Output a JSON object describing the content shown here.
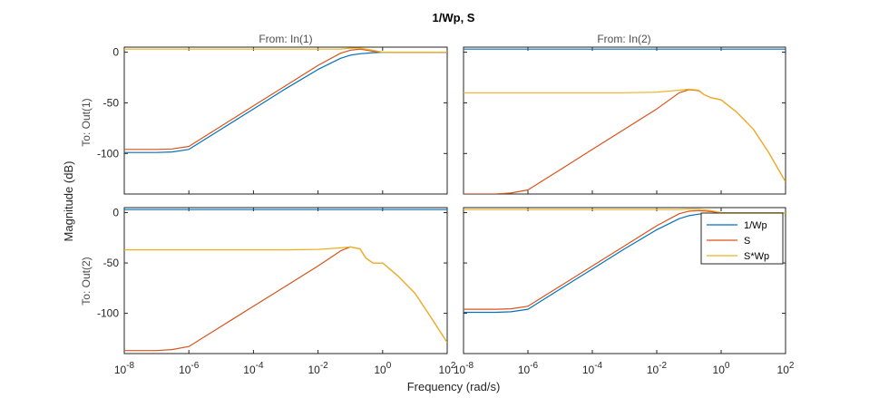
{
  "chart_data": {
    "type": "line",
    "title": "1/Wp, S",
    "xlabel": "Frequency  (rad/s)",
    "ylabel": "Magnitude (dB)",
    "x_scale": "log",
    "xlim": [
      1e-08,
      100
    ],
    "x_tick_values": [
      1e-08,
      1e-06,
      0.0001,
      0.01,
      1,
      100
    ],
    "x_tick_labels": [
      [
        "10",
        "-8"
      ],
      [
        "10",
        "-6"
      ],
      [
        "10",
        "-4"
      ],
      [
        "10",
        "-2"
      ],
      [
        "10",
        "0"
      ],
      [
        "10",
        "2"
      ]
    ],
    "column_titles": [
      "From: In(1)",
      "From: In(2)"
    ],
    "row_titles": [
      "To: Out(1)",
      "To: Out(2)"
    ],
    "legend": {
      "placement": "top-right of bottom-right panel",
      "entries": [
        "1/Wp",
        "S",
        "S*Wp"
      ]
    },
    "colors": {
      "1/Wp": "#0072BD",
      "S": "#D95319",
      "S*Wp": "#EDB120"
    },
    "panels": [
      {
        "row": 0,
        "col": 0,
        "ylim": [
          -140,
          5
        ],
        "yticks": [
          0,
          -50,
          -100
        ],
        "series": [
          {
            "name": "1/Wp",
            "x": [
              1e-08,
              1e-07,
              3e-07,
              1e-06,
              1e-05,
              0.0001,
              0.001,
              0.01,
              0.05,
              0.1,
              0.2,
              0.5,
              1,
              100
            ],
            "y": [
              -99,
              -99,
              -98.5,
              -96,
              -76,
              -56,
              -36,
              -17,
              -6,
              -3,
              -1.5,
              -0.5,
              0,
              0
            ]
          },
          {
            "name": "S",
            "x": [
              1e-08,
              1e-07,
              3e-07,
              1e-06,
              1e-05,
              0.0001,
              0.001,
              0.01,
              0.05,
              0.1,
              0.2,
              0.5,
              1,
              100
            ],
            "y": [
              -96,
              -96,
              -95.5,
              -93,
              -73,
              -53,
              -33,
              -13,
              -1,
              2,
              3,
              1,
              0,
              0
            ]
          },
          {
            "name": "S*Wp",
            "x": [
              1e-08,
              0.0001,
              0.05,
              0.1,
              0.2,
              0.5,
              1,
              100
            ],
            "y": [
              3,
              3,
              3,
              4,
              4,
              2,
              0,
              0
            ]
          }
        ]
      },
      {
        "row": 0,
        "col": 1,
        "ylim": [
          -140,
          5
        ],
        "yticks": [],
        "series": [
          {
            "name": "1/Wp",
            "x": [
              1e-08,
              100
            ],
            "y": [
              3,
              3
            ]
          },
          {
            "name": "S",
            "x": [
              1e-08,
              1e-07,
              3e-07,
              1e-06,
              1e-05,
              0.0001,
              0.001,
              0.01,
              0.05,
              0.1,
              0.2,
              0.3,
              0.5,
              1,
              3,
              10,
              30,
              100
            ],
            "y": [
              -140,
              -140,
              -139,
              -136,
              -116,
              -96,
              -76,
              -56,
              -40,
              -37,
              -38,
              -42,
              -45,
              -47,
              -59,
              -76,
              -99,
              -128
            ]
          },
          {
            "name": "S*Wp",
            "x": [
              1e-08,
              0.0001,
              0.001,
              0.01,
              0.05,
              0.1,
              0.2,
              0.3,
              0.5,
              1,
              3,
              10,
              30,
              100
            ],
            "y": [
              -40,
              -40,
              -40,
              -39.5,
              -37.5,
              -36.5,
              -37.5,
              -42,
              -45,
              -47,
              -59,
              -76,
              -99,
              -128
            ]
          }
        ]
      },
      {
        "row": 1,
        "col": 0,
        "ylim": [
          -140,
          5
        ],
        "yticks": [
          0,
          -50,
          -100
        ],
        "series": [
          {
            "name": "1/Wp",
            "x": [
              1e-08,
              100
            ],
            "y": [
              3,
              3
            ]
          },
          {
            "name": "S",
            "x": [
              1e-08,
              1e-07,
              3e-07,
              1e-06,
              1e-05,
              0.0001,
              0.001,
              0.01,
              0.05,
              0.1,
              0.2,
              0.3,
              0.5,
              1,
              3,
              10,
              30,
              100
            ],
            "y": [
              -137,
              -137,
              -136,
              -133,
              -113,
              -93,
              -73,
              -53,
              -38,
              -34,
              -36,
              -45,
              -50,
              -50,
              -63,
              -80,
              -103,
              -129
            ]
          },
          {
            "name": "S*Wp",
            "x": [
              1e-08,
              0.0001,
              0.001,
              0.01,
              0.05,
              0.1,
              0.2,
              0.3,
              0.5,
              1,
              3,
              10,
              30,
              100
            ],
            "y": [
              -37,
              -37,
              -37,
              -36.5,
              -35,
              -34,
              -36,
              -45,
              -50,
              -50,
              -63,
              -80,
              -103,
              -129
            ]
          }
        ]
      },
      {
        "row": 1,
        "col": 1,
        "ylim": [
          -140,
          5
        ],
        "yticks": [],
        "series": [
          {
            "name": "1/Wp",
            "x": [
              1e-08,
              1e-07,
              3e-07,
              1e-06,
              1e-05,
              0.0001,
              0.001,
              0.01,
              0.05,
              0.1,
              0.2,
              0.5,
              1,
              100
            ],
            "y": [
              -99,
              -99,
              -98.5,
              -96,
              -76,
              -56,
              -36,
              -17,
              -6,
              -3,
              -1.5,
              -0.5,
              0,
              0
            ]
          },
          {
            "name": "S",
            "x": [
              1e-08,
              1e-07,
              3e-07,
              1e-06,
              1e-05,
              0.0001,
              0.001,
              0.01,
              0.05,
              0.1,
              0.2,
              0.5,
              1,
              100
            ],
            "y": [
              -96,
              -96,
              -95.5,
              -93,
              -73,
              -53,
              -33,
              -13,
              -1,
              1.5,
              2,
              1,
              0,
              0
            ]
          },
          {
            "name": "S*Wp",
            "x": [
              1e-08,
              0.0001,
              0.05,
              0.1,
              0.2,
              0.5,
              1,
              100
            ],
            "y": [
              3,
              3,
              3,
              3.5,
              3.5,
              2,
              0,
              0
            ]
          }
        ]
      }
    ]
  }
}
